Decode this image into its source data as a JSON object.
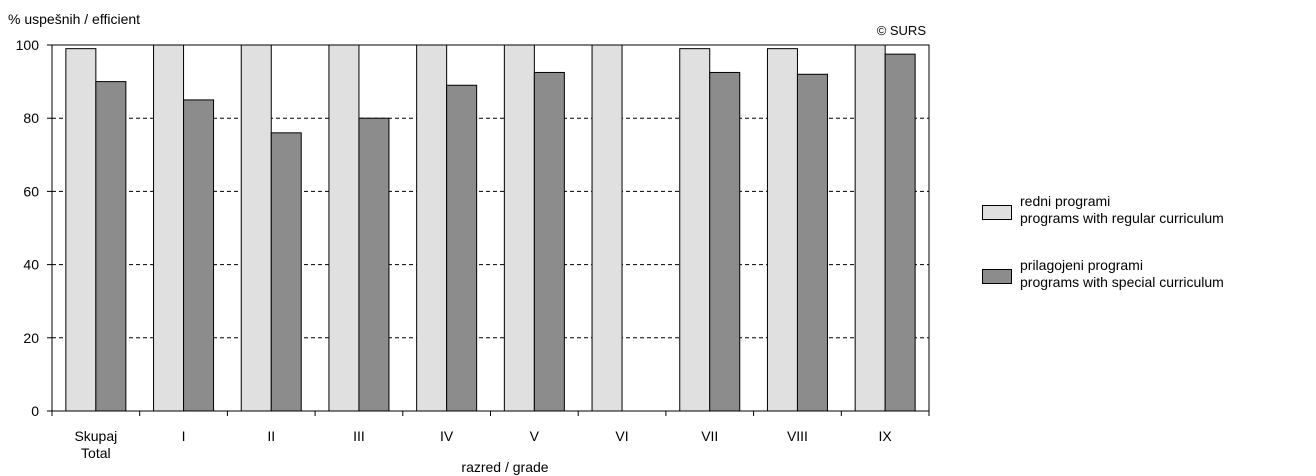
{
  "chart_data": {
    "type": "bar",
    "ylabel": "% uspešnih / efficient",
    "xlabel": "razred / grade",
    "copyright": "© SURS",
    "ylim": [
      0,
      100
    ],
    "yticks": [
      0,
      20,
      40,
      60,
      80,
      100
    ],
    "grid": "horizontal dashed",
    "legend_position": "right",
    "categories": [
      [
        "Skupaj",
        "Total"
      ],
      [
        "I"
      ],
      [
        "II"
      ],
      [
        "III"
      ],
      [
        "IV"
      ],
      [
        "V"
      ],
      [
        "VI"
      ],
      [
        "VII"
      ],
      [
        "VIII"
      ],
      [
        "IX"
      ]
    ],
    "series": [
      {
        "name": "redni programi",
        "name_en": "programs with regular curriculum",
        "color": "#e0e0e0",
        "values": [
          99,
          100,
          100,
          100,
          100,
          100,
          100,
          99,
          99,
          100
        ]
      },
      {
        "name": "prilagojeni programi",
        "name_en": "programs with special curriculum",
        "color": "#8c8c8c",
        "values": [
          90,
          85,
          76,
          80,
          89,
          92.5,
          null,
          92.5,
          92,
          97.5
        ]
      }
    ]
  }
}
